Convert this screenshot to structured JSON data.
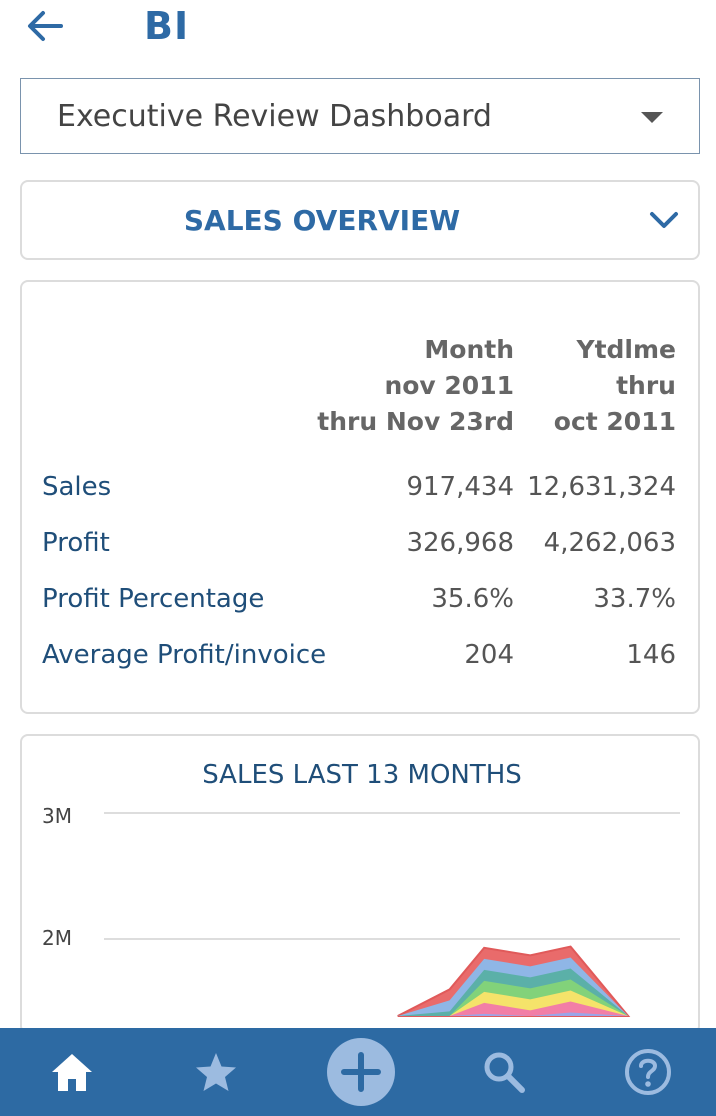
{
  "header": {
    "title": "BI",
    "back_icon": "arrow-left-icon"
  },
  "dashboard_select": {
    "selected": "Executive Review Dashboard"
  },
  "section": {
    "title": "SALES OVERVIEW"
  },
  "summary_table": {
    "columns": [
      {
        "line1": "Month",
        "line2": "nov 2011",
        "line3": "thru Nov 23rd"
      },
      {
        "line1": "Ytdlme",
        "line2": "thru",
        "line3": "oct 2011"
      }
    ],
    "rows": [
      {
        "label": "Sales",
        "month": "917,434",
        "ytd": "12,631,324"
      },
      {
        "label": "Profit",
        "month": "326,968",
        "ytd": "4,262,063"
      },
      {
        "label": "Profit Percentage",
        "month": "35.6%",
        "ytd": "33.7%"
      },
      {
        "label": "Average Profit/invoice",
        "month": "204",
        "ytd": "146"
      }
    ]
  },
  "chart_data": {
    "type": "area",
    "title": "SALES LAST 13 MONTHS",
    "ytick_labels": [
      "3M",
      "2M"
    ],
    "ylim": [
      0,
      3000000
    ],
    "x_visible_fraction": [
      0.0,
      1.0
    ],
    "stacked": true,
    "series_colors": [
      "#9aa4e8",
      "#f27ea6",
      "#f5e36a",
      "#82d27a",
      "#5bb0a8",
      "#8fb6e6",
      "#e96b6b"
    ],
    "outline": [
      {
        "x": 0.51,
        "y": 1250000
      },
      {
        "x": 0.6,
        "y": 1600000
      },
      {
        "x": 0.66,
        "y": 1930000
      },
      {
        "x": 0.74,
        "y": 1870000
      },
      {
        "x": 0.81,
        "y": 1940000
      },
      {
        "x": 0.91,
        "y": 1250000
      }
    ]
  },
  "nav": {
    "items": [
      {
        "name": "home",
        "icon": "home-icon"
      },
      {
        "name": "favorites",
        "icon": "star-icon"
      },
      {
        "name": "add",
        "icon": "plus-circle-icon"
      },
      {
        "name": "search",
        "icon": "search-icon"
      },
      {
        "name": "help",
        "icon": "help-icon"
      }
    ],
    "colors": {
      "bar": "#2d6aa3",
      "icon": "#ffffff",
      "icon_muted": "#9cbbe0"
    }
  }
}
